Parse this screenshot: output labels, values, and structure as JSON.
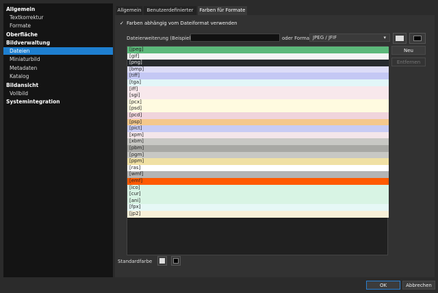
{
  "sidebar": [
    {
      "title": "Allgemein",
      "items": [
        "Textkorrektur",
        "Formate"
      ]
    },
    {
      "title": "Oberfläche",
      "items": []
    },
    {
      "title": "Bildverwaltung",
      "items": [
        "Dateien",
        "Miniaturbild",
        "Metadaten",
        "Katalog"
      ]
    },
    {
      "title": "Bildansicht",
      "items": [
        "Vollbild"
      ]
    },
    {
      "title": "Systemintegration",
      "items": []
    }
  ],
  "tabs": [
    "Allgemein",
    "Benutzerdefinierter Filter",
    "Farben für Formate"
  ],
  "checkbox": "Farben abhängig vom Dateiformat verwenden",
  "extension_label": "Dateierweiterung (Beispiel: abc)",
  "format_label": "oder Format:",
  "format_select": "JPEG / JFIF",
  "formats": [
    {
      "label": "[jpeg]",
      "color": "#5cb87a"
    },
    {
      "label": "[gif]",
      "color": "#f4f4f4"
    },
    {
      "label": "[png]",
      "color": "#262a2e"
    },
    {
      "label": "[bmp]",
      "color": "#dcdcf8"
    },
    {
      "label": "[tiff]",
      "color": "#c4c8f4"
    },
    {
      "label": "[tga]",
      "color": "#e2f6f8"
    },
    {
      "label": "[iff]",
      "color": "#f8e8ec"
    },
    {
      "label": "[sgi]",
      "color": "#f8e8ec"
    },
    {
      "label": "[pcx]",
      "color": "#fffbe0"
    },
    {
      "label": "[psd]",
      "color": "#fffbe0"
    },
    {
      "label": "[pcd]",
      "color": "#f0d4dc"
    },
    {
      "label": "[psp]",
      "color": "#f4c88c"
    },
    {
      "label": "[pict]",
      "color": "#c8ccf4"
    },
    {
      "label": "[xpm]",
      "color": "#f4e6ea"
    },
    {
      "label": "[xbm]",
      "color": "#c8c8c4"
    },
    {
      "label": "[pbm]",
      "color": "#a8a8a4"
    },
    {
      "label": "[pgm]",
      "color": "#c8c8c4"
    },
    {
      "label": "[ppm]",
      "color": "#f0e0a4"
    },
    {
      "label": "[ras]",
      "color": "#ffffff"
    },
    {
      "label": "[wmf]",
      "color": "#b4b4b4"
    },
    {
      "label": "[emf]",
      "color": "#ff5a00"
    },
    {
      "label": "[ico]",
      "color": "#d8f4e4"
    },
    {
      "label": "[cur]",
      "color": "#d8f4e4"
    },
    {
      "label": "[ani]",
      "color": "#d8f4e4"
    },
    {
      "label": "[fpx]",
      "color": "#e6f8f6"
    },
    {
      "label": "[jp2]",
      "color": "#f8f0d8"
    }
  ],
  "buttons": {
    "new": "Neu",
    "remove": "Entfernen",
    "ok": "OK",
    "cancel": "Abbrechen"
  },
  "default_color_label": "Standardfarbe"
}
